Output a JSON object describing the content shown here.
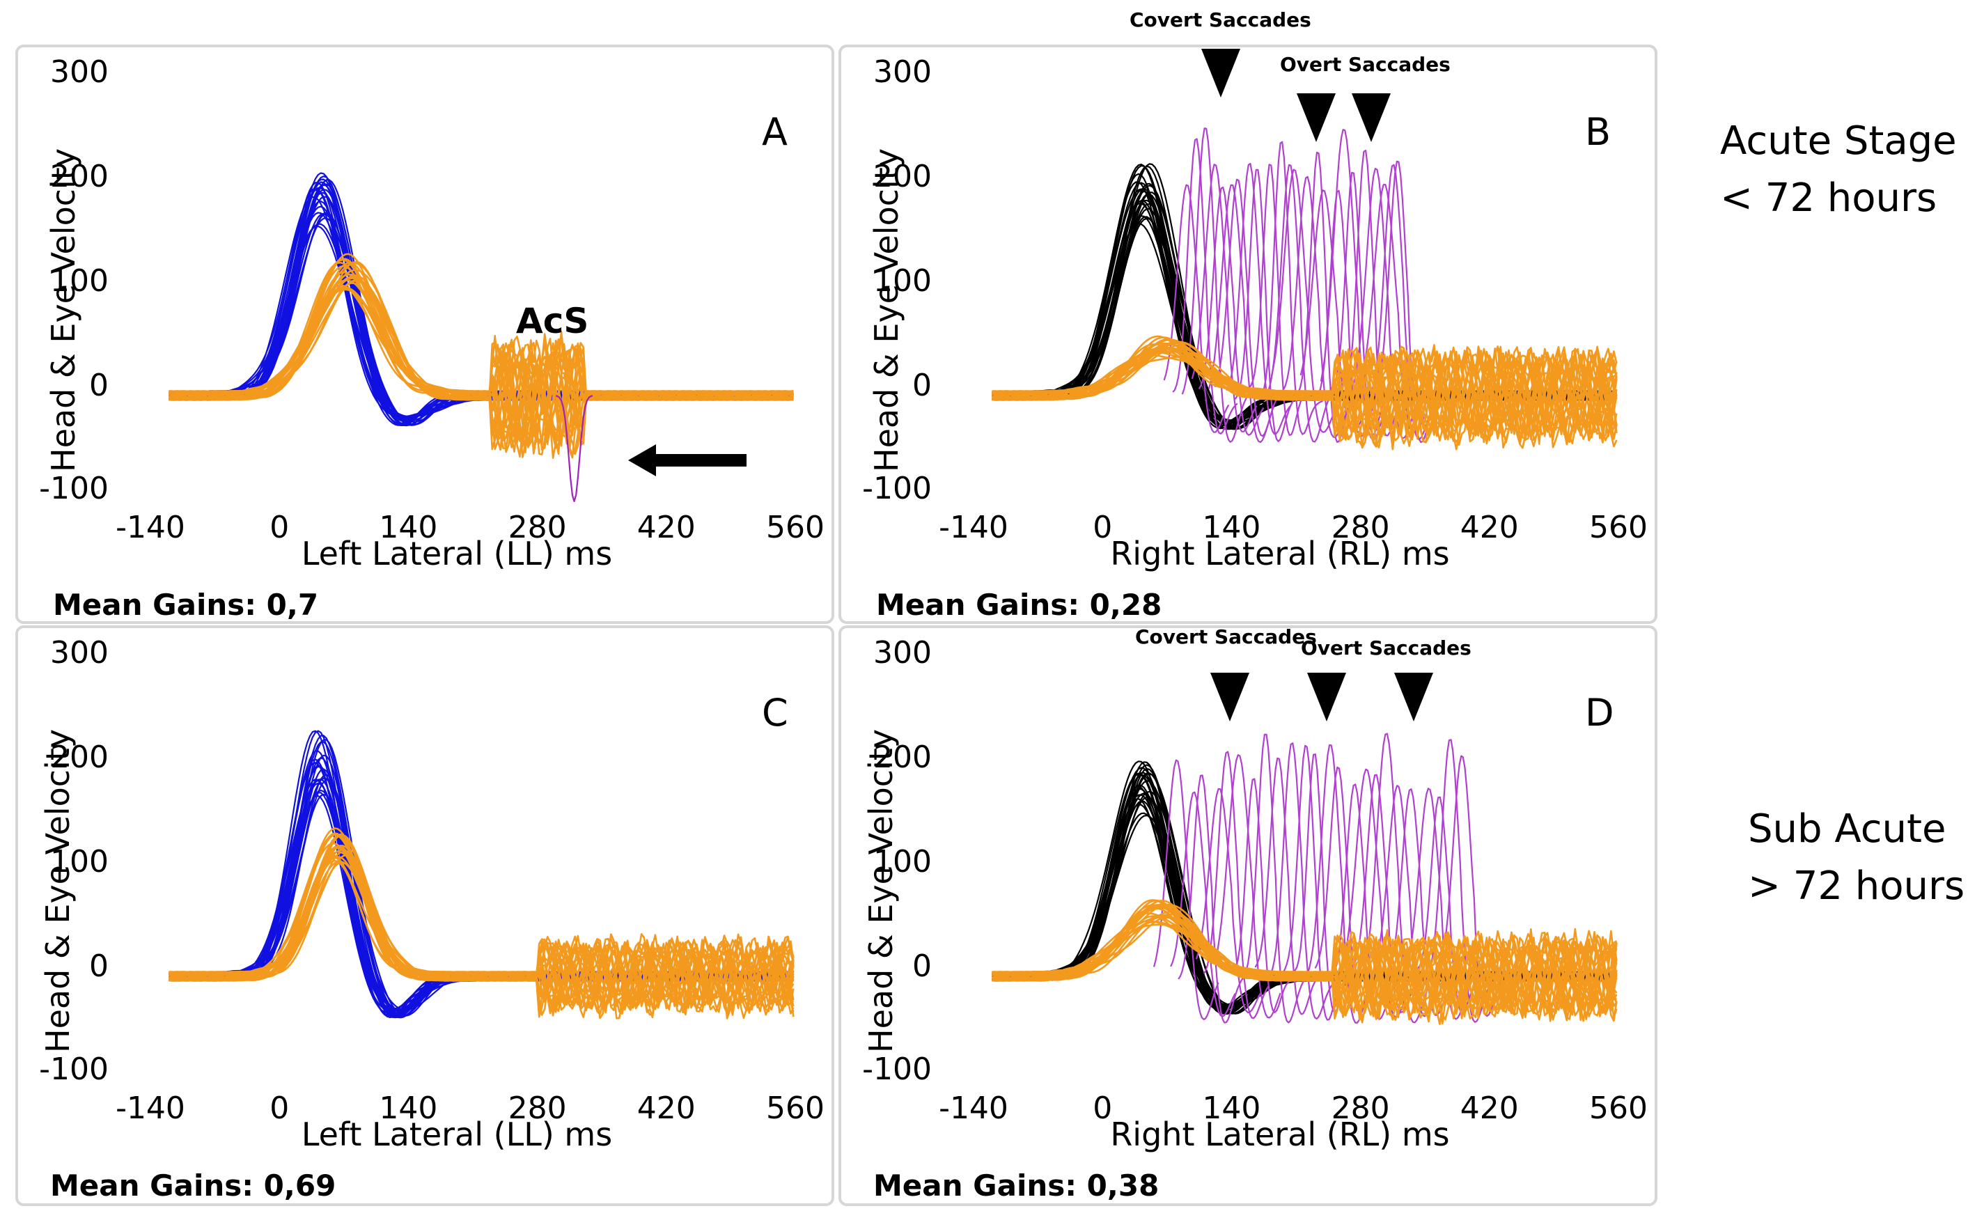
{
  "figure": {
    "stage_labels": {
      "acute_line1": "Acute Stage",
      "acute_line2": "< 72 hours",
      "subacute_line1": "Sub Acute",
      "subacute_line2": "> 72 hours"
    }
  },
  "chart_data": [
    {
      "id": "A",
      "type": "line",
      "panel_letter": "A",
      "xlabel": "Left Lateral (LL) ms",
      "ylabel": "Head & Eye Velocity",
      "xlim": [
        -140,
        560
      ],
      "ylim": [
        -100,
        300
      ],
      "xticks": [
        "-140",
        "0",
        "140",
        "280",
        "420",
        "560"
      ],
      "yticks": [
        "300",
        "200",
        "100",
        "0",
        "-100"
      ],
      "mean_gains": "Mean Gains: 0,7",
      "annotations": {
        "acs_label": "AcS",
        "arrow": "left-arrow"
      },
      "series": [
        {
          "name": "head impulse",
          "color": "#1010e0",
          "peak": 185,
          "peak_ms": 45,
          "width_ms": 42,
          "undershoot": -35,
          "traces": 24
        },
        {
          "name": "eye velocity",
          "color": "#f39a1e",
          "peak": 110,
          "peak_ms": 75,
          "width_ms": 50,
          "noise_from_ms": 230,
          "noise_to_ms": 330,
          "noise_amp": 55,
          "traces": 22
        },
        {
          "name": "covert saccade",
          "color": "#a020c0",
          "peak": -95,
          "peak_ms": 320,
          "traces": 1
        }
      ]
    },
    {
      "id": "B",
      "type": "line",
      "panel_letter": "B",
      "xlabel": "Right Lateral (RL) ms",
      "ylabel": "Head & Eye Velocity",
      "xlim": [
        -140,
        560
      ],
      "ylim": [
        -100,
        300
      ],
      "xticks": [
        "-140",
        "0",
        "140",
        "280",
        "420",
        "560"
      ],
      "yticks": [
        "300",
        "200",
        "100",
        "0",
        "-100"
      ],
      "mean_gains": "Mean Gains: 0,28",
      "annotations": {
        "covert_label": "Covert Saccades",
        "overt_label": "Overt Saccades",
        "marker_ms": [
          128,
          232,
          292
        ]
      },
      "series": [
        {
          "name": "head impulse",
          "color": "#000000",
          "peak": 190,
          "peak_ms": 45,
          "width_ms": 42,
          "undershoot": -40,
          "traces": 24
        },
        {
          "name": "saccades",
          "color": "#b040d0",
          "peak": 240,
          "from_ms": 85,
          "to_ms": 330,
          "traces": 24
        },
        {
          "name": "eye velocity",
          "color": "#f39a1e",
          "peak": 45,
          "peak_ms": 70,
          "width_ms": 55,
          "noise_from_ms": 250,
          "noise_to_ms": 560,
          "noise_amp": 45,
          "traces": 22
        }
      ]
    },
    {
      "id": "C",
      "type": "line",
      "panel_letter": "C",
      "xlabel": "Left Lateral (LL) ms",
      "ylabel": "Head & Eye Velocity",
      "xlim": [
        -140,
        560
      ],
      "ylim": [
        -100,
        300
      ],
      "xticks": [
        "-140",
        "0",
        "140",
        "280",
        "420",
        "560"
      ],
      "yticks": [
        "300",
        "200",
        "100",
        "0",
        "-100"
      ],
      "mean_gains": "Mean Gains: 0,69",
      "annotations": {},
      "series": [
        {
          "name": "head impulse",
          "color": "#1010e0",
          "peak": 195,
          "peak_ms": 45,
          "width_ms": 38,
          "undershoot": -50,
          "traces": 24
        },
        {
          "name": "eye velocity",
          "color": "#f39a1e",
          "peak": 120,
          "peak_ms": 65,
          "width_ms": 42,
          "noise_from_ms": 280,
          "noise_to_ms": 560,
          "noise_amp": 35,
          "traces": 22
        }
      ]
    },
    {
      "id": "D",
      "type": "line",
      "panel_letter": "D",
      "xlabel": "Right Lateral (RL) ms",
      "ylabel": "Head & Eye Velocity",
      "xlim": [
        -140,
        560
      ],
      "ylim": [
        -100,
        300
      ],
      "xticks": [
        "-140",
        "0",
        "140",
        "280",
        "420",
        "560"
      ],
      "yticks": [
        "300",
        "200",
        "100",
        "0",
        "-100"
      ],
      "mean_gains": "Mean Gains: 0,38",
      "annotations": {
        "covert_label": "Covert Saccades",
        "overt_label": "Overt Saccades",
        "marker_ms": [
          138,
          243,
          338
        ]
      },
      "series": [
        {
          "name": "head impulse",
          "color": "#000000",
          "peak": 175,
          "peak_ms": 45,
          "width_ms": 42,
          "undershoot": -45,
          "traces": 24
        },
        {
          "name": "saccades",
          "color": "#b040d0",
          "peak": 215,
          "from_ms": 80,
          "to_ms": 400,
          "traces": 24
        },
        {
          "name": "eye velocity",
          "color": "#f39a1e",
          "peak": 60,
          "peak_ms": 60,
          "width_ms": 55,
          "noise_from_ms": 250,
          "noise_to_ms": 560,
          "noise_amp": 40,
          "traces": 22
        }
      ]
    }
  ]
}
